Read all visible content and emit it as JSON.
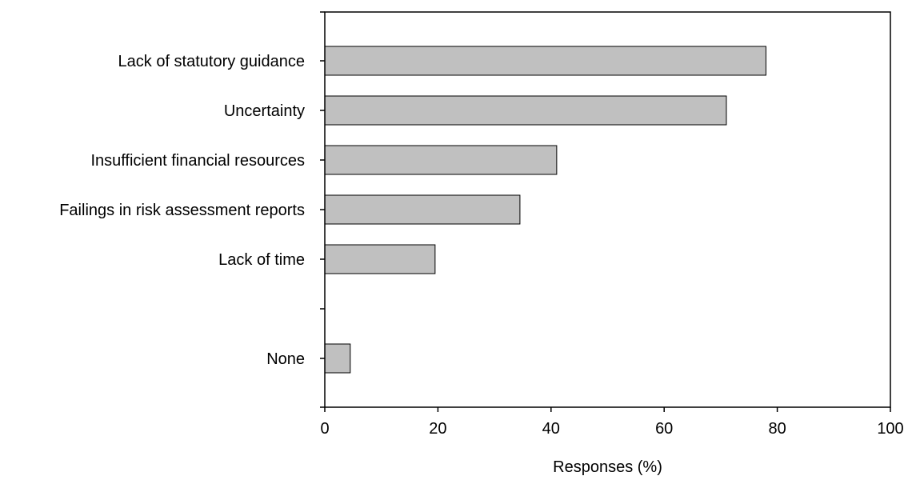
{
  "chart_data": {
    "type": "bar",
    "orientation": "horizontal",
    "categories": [
      "Lack of statutory guidance",
      "Uncertainty",
      "Insufficient financial resources",
      "Failings in risk assessment reports",
      "Lack of time",
      "",
      "None"
    ],
    "values": [
      78,
      71,
      41,
      34.5,
      19.5,
      null,
      4.5
    ],
    "xlabel": "Responses (%)",
    "ylabel": "",
    "title": "",
    "xlim": [
      0,
      100
    ],
    "xticks": [
      "0",
      "20",
      "40",
      "60",
      "80",
      "100"
    ],
    "xtick_values": [
      0,
      20,
      40,
      60,
      80,
      100
    ],
    "grid": false,
    "colors": {
      "bar_fill": "#c0c0c0",
      "bar_stroke": "#000000",
      "axis": "#000000"
    }
  }
}
